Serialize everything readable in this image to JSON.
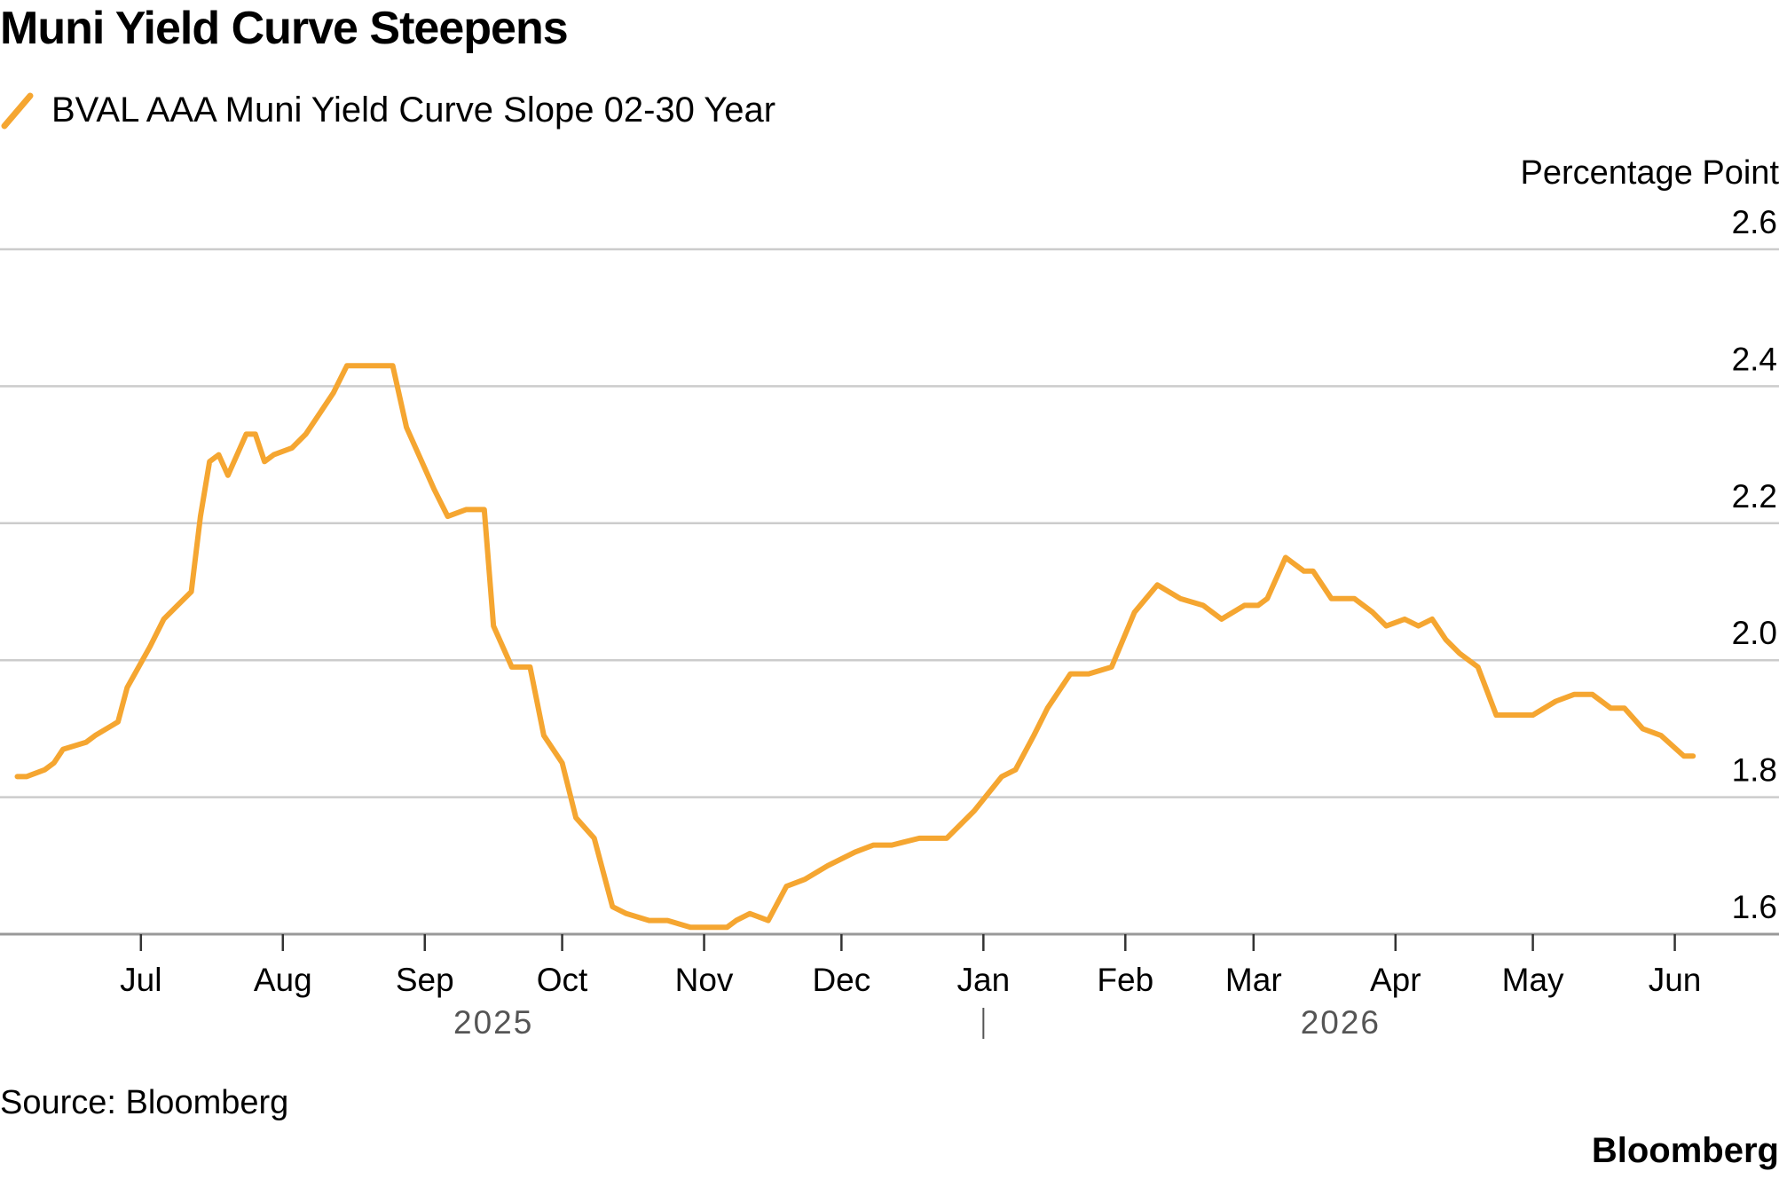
{
  "header": {
    "title": "Muni Yield Curve Steepens",
    "legend_label": "BVAL AAA Muni Yield Curve Slope 02-30 Year"
  },
  "footer": {
    "source": "Source: Bloomberg",
    "brand": "Bloomberg"
  },
  "colors": {
    "series": "#F5A631",
    "grid": "#CCCCCC",
    "axis": "#999999",
    "text": "#000000",
    "year_text": "#555555"
  },
  "chart_data": {
    "type": "line",
    "title": "Muni Yield Curve Steepens",
    "ylabel": "Percentage Point",
    "ylim": [
      1.6,
      2.6
    ],
    "yticks": [
      "1.6",
      "1.8",
      "2.0",
      "2.2",
      "2.4",
      "2.6"
    ],
    "y_axis_side": "right",
    "grid": "horizontal",
    "legend_position": "top-left",
    "x_axis": {
      "type": "date",
      "range": [
        "2025-06-01",
        "2026-06-10"
      ],
      "ticks": [
        {
          "date": "2025-07-01",
          "label": "Jul"
        },
        {
          "date": "2025-08-01",
          "label": "Aug"
        },
        {
          "date": "2025-09-01",
          "label": "Sep"
        },
        {
          "date": "2025-10-01",
          "label": "Oct"
        },
        {
          "date": "2025-11-01",
          "label": "Nov"
        },
        {
          "date": "2025-12-01",
          "label": "Dec"
        },
        {
          "date": "2026-01-01",
          "label": "Jan"
        },
        {
          "date": "2026-02-01",
          "label": "Feb"
        },
        {
          "date": "2026-03-01",
          "label": "Mar"
        },
        {
          "date": "2026-04-01",
          "label": "Apr"
        },
        {
          "date": "2026-05-01",
          "label": "May"
        },
        {
          "date": "2026-06-01",
          "label": "Jun"
        }
      ],
      "years": [
        {
          "label": "2025",
          "center": "2025-09-16"
        },
        {
          "label": "2026",
          "center": "2026-03-20"
        }
      ],
      "year_divider": "2026-01-01"
    },
    "series": [
      {
        "name": "BVAL AAA Muni Yield Curve Slope 02-30 Year",
        "x": [
          "2025-06-04",
          "2025-06-06",
          "2025-06-10",
          "2025-06-12",
          "2025-06-14",
          "2025-06-19",
          "2025-06-21",
          "2025-06-26",
          "2025-06-28",
          "2025-07-03",
          "2025-07-06",
          "2025-07-09",
          "2025-07-12",
          "2025-07-14",
          "2025-07-16",
          "2025-07-18",
          "2025-07-20",
          "2025-07-24",
          "2025-07-26",
          "2025-07-28",
          "2025-07-30",
          "2025-08-03",
          "2025-08-06",
          "2025-08-09",
          "2025-08-12",
          "2025-08-15",
          "2025-08-18",
          "2025-08-21",
          "2025-08-25",
          "2025-08-28",
          "2025-09-01",
          "2025-09-03",
          "2025-09-06",
          "2025-09-10",
          "2025-09-14",
          "2025-09-16",
          "2025-09-20",
          "2025-09-24",
          "2025-09-27",
          "2025-10-01",
          "2025-10-04",
          "2025-10-08",
          "2025-10-12",
          "2025-10-15",
          "2025-10-20",
          "2025-10-24",
          "2025-10-29",
          "2025-11-03",
          "2025-11-06",
          "2025-11-08",
          "2025-11-11",
          "2025-11-15",
          "2025-11-19",
          "2025-11-23",
          "2025-11-28",
          "2025-12-04",
          "2025-12-08",
          "2025-12-12",
          "2025-12-18",
          "2025-12-24",
          "2025-12-30",
          "2026-01-05",
          "2026-01-08",
          "2026-01-12",
          "2026-01-15",
          "2026-01-20",
          "2026-01-24",
          "2026-01-29",
          "2026-02-03",
          "2026-02-08",
          "2026-02-13",
          "2026-02-18",
          "2026-02-22",
          "2026-02-27",
          "2026-03-02",
          "2026-03-04",
          "2026-03-08",
          "2026-03-12",
          "2026-03-14",
          "2026-03-18",
          "2026-03-23",
          "2026-03-27",
          "2026-03-30",
          "2026-04-03",
          "2026-04-06",
          "2026-04-09",
          "2026-04-12",
          "2026-04-15",
          "2026-04-19",
          "2026-04-23",
          "2026-04-27",
          "2026-05-01",
          "2026-05-06",
          "2026-05-10",
          "2026-05-14",
          "2026-05-18",
          "2026-05-21",
          "2026-05-25",
          "2026-05-29",
          "2026-06-03",
          "2026-06-05"
        ],
        "y": [
          1.83,
          1.83,
          1.84,
          1.85,
          1.87,
          1.88,
          1.89,
          1.91,
          1.96,
          2.02,
          2.06,
          2.08,
          2.1,
          2.21,
          2.29,
          2.3,
          2.27,
          2.33,
          2.33,
          2.29,
          2.3,
          2.31,
          2.33,
          2.36,
          2.39,
          2.43,
          2.43,
          2.43,
          2.43,
          2.34,
          2.28,
          2.25,
          2.21,
          2.22,
          2.22,
          2.05,
          1.99,
          1.99,
          1.89,
          1.85,
          1.77,
          1.74,
          1.64,
          1.63,
          1.62,
          1.62,
          1.61,
          1.61,
          1.61,
          1.62,
          1.63,
          1.62,
          1.67,
          1.68,
          1.7,
          1.72,
          1.73,
          1.73,
          1.74,
          1.74,
          1.78,
          1.83,
          1.84,
          1.89,
          1.93,
          1.98,
          1.98,
          1.99,
          2.07,
          2.11,
          2.09,
          2.08,
          2.06,
          2.08,
          2.08,
          2.09,
          2.15,
          2.13,
          2.13,
          2.09,
          2.09,
          2.07,
          2.05,
          2.06,
          2.05,
          2.06,
          2.03,
          2.01,
          1.99,
          1.92,
          1.92,
          1.92,
          1.94,
          1.95,
          1.95,
          1.93,
          1.93,
          1.9,
          1.89,
          1.86,
          1.86
        ]
      }
    ]
  }
}
